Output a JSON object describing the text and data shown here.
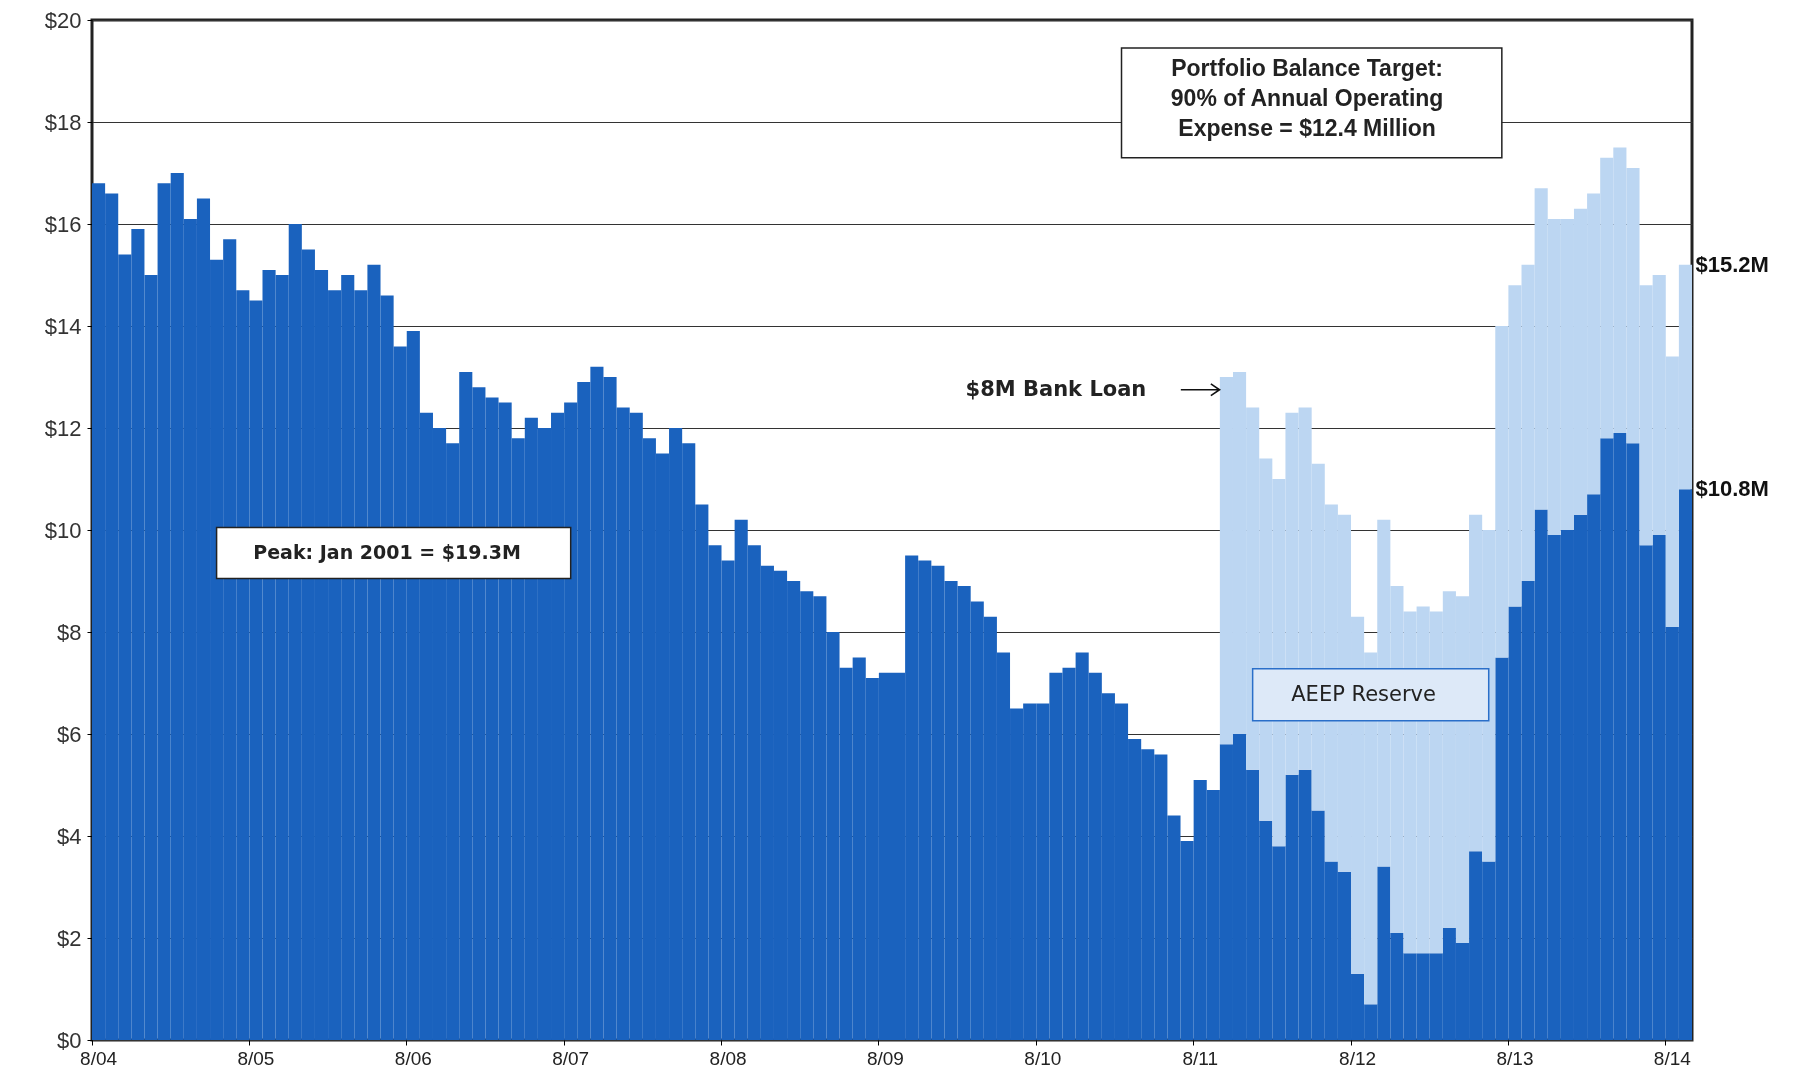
{
  "chart_data": {
    "type": "bar",
    "stacked": true,
    "grid": "y",
    "categories": [
      "8/04",
      null,
      null,
      null,
      null,
      null,
      null,
      null,
      null,
      null,
      null,
      null,
      "8/05",
      null,
      null,
      null,
      null,
      null,
      null,
      null,
      null,
      null,
      null,
      null,
      "8/06",
      null,
      null,
      null,
      null,
      null,
      null,
      null,
      null,
      null,
      null,
      null,
      "8/07",
      null,
      null,
      null,
      null,
      null,
      null,
      null,
      null,
      null,
      null,
      null,
      "8/08",
      null,
      null,
      null,
      null,
      null,
      null,
      null,
      null,
      null,
      null,
      null,
      "8/09",
      null,
      null,
      null,
      null,
      null,
      null,
      null,
      null,
      null,
      null,
      null,
      "8/10",
      null,
      null,
      null,
      null,
      null,
      null,
      null,
      null,
      null,
      null,
      null,
      "8/11",
      null,
      null,
      null,
      null,
      null,
      null,
      null,
      null,
      null,
      null,
      null,
      "8/12",
      null,
      null,
      null,
      null,
      null,
      null,
      null,
      null,
      null,
      null,
      null,
      "8/13",
      null,
      null,
      null,
      null,
      null,
      null,
      null,
      null,
      null,
      null,
      null,
      "8/14",
      null
    ],
    "series": [
      {
        "color": "#1a62be",
        "values": [
          16.8,
          16.6,
          15.4,
          15.9,
          15.0,
          16.8,
          17.0,
          16.1,
          16.5,
          15.3,
          15.7,
          14.7,
          14.5,
          15.1,
          15.0,
          16.0,
          15.5,
          15.1,
          14.7,
          15.0,
          14.7,
          15.2,
          14.6,
          13.6,
          13.9,
          12.3,
          12.0,
          11.7,
          13.1,
          12.8,
          12.6,
          12.5,
          11.8,
          12.2,
          12.0,
          12.3,
          12.5,
          12.9,
          13.2,
          13.0,
          12.4,
          12.3,
          11.8,
          11.5,
          12.0,
          11.7,
          10.5,
          9.7,
          9.4,
          10.2,
          9.7,
          9.3,
          9.2,
          9.0,
          8.8,
          8.7,
          8.0,
          7.3,
          7.5,
          7.1,
          7.2,
          7.2,
          9.5,
          9.4,
          9.3,
          9.0,
          8.9,
          8.6,
          8.3,
          7.6,
          6.5,
          6.6,
          6.6,
          7.2,
          7.3,
          7.6,
          7.2,
          6.8,
          6.6,
          5.9,
          5.7,
          5.6,
          4.4,
          3.9,
          5.1,
          4.9,
          5.8,
          6.0,
          5.3,
          4.3,
          3.8,
          5.2,
          5.3,
          4.5,
          3.5,
          3.3,
          1.3,
          0.7,
          3.4,
          2.1,
          1.7,
          1.7,
          1.7,
          2.2,
          1.9,
          3.7,
          3.5,
          7.5,
          8.5,
          9.0,
          10.4,
          9.9,
          10.0,
          10.3,
          10.7,
          11.8,
          11.9,
          11.7,
          9.7,
          9.9,
          8.1,
          10.8
        ]
      },
      {
        "name": "AEEP Reserve",
        "color": "#bcd6f2",
        "values": [
          null,
          null,
          null,
          null,
          null,
          null,
          null,
          null,
          null,
          null,
          null,
          null,
          null,
          null,
          null,
          null,
          null,
          null,
          null,
          null,
          null,
          null,
          null,
          null,
          null,
          null,
          null,
          null,
          null,
          null,
          null,
          null,
          null,
          null,
          null,
          null,
          null,
          null,
          null,
          null,
          null,
          null,
          null,
          null,
          null,
          null,
          null,
          null,
          null,
          null,
          null,
          null,
          null,
          null,
          null,
          null,
          null,
          null,
          null,
          null,
          null,
          null,
          null,
          null,
          null,
          null,
          null,
          null,
          null,
          null,
          null,
          null,
          null,
          null,
          null,
          null,
          null,
          null,
          null,
          null,
          null,
          null,
          null,
          null,
          null,
          null,
          7.2,
          7.1,
          7.1,
          7.1,
          7.2,
          7.1,
          7.1,
          6.8,
          7.0,
          7.0,
          7.0,
          6.9,
          6.8,
          6.8,
          6.7,
          6.8,
          6.7,
          6.6,
          6.8,
          6.6,
          6.5,
          6.5,
          6.3,
          6.2,
          6.3,
          6.2,
          6.1,
          6.0,
          5.9,
          5.5,
          5.6,
          5.4,
          5.1,
          5.1,
          5.3,
          4.4
        ]
      }
    ],
    "ylim": [
      0,
      20
    ],
    "yticks": [
      {
        "value": 0,
        "label": "$0"
      },
      {
        "value": 2,
        "label": "$2"
      },
      {
        "value": 4,
        "label": "$4"
      },
      {
        "value": 6,
        "label": "$6"
      },
      {
        "value": 8,
        "label": "$8"
      },
      {
        "value": 10,
        "label": "$10"
      },
      {
        "value": 12,
        "label": "$12"
      },
      {
        "value": 14,
        "label": "$14"
      },
      {
        "value": 16,
        "label": "$16"
      },
      {
        "value": 18,
        "label": "$18"
      },
      {
        "value": 20,
        "label": "$20"
      }
    ],
    "annotations": [
      "Portfolio Balance Target:\n90% of Annual Operating\nExpense = $12.4 Million",
      "Peak: Jan 2001 = $19.3M",
      "$8M Bank Loan",
      "$15.2M",
      "$10.8M"
    ]
  }
}
